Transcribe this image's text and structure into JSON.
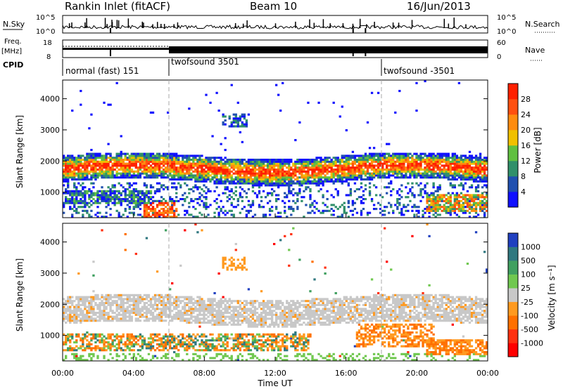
{
  "header": {
    "station": "Rankin Inlet (fitACF)",
    "beam": "Beam 10",
    "date": "16/Jun/2013"
  },
  "strips": {
    "nsky_label": "N.Sky",
    "nsky_ticks": [
      "10^5",
      "10^0"
    ],
    "nsearch_label": "N.Search",
    "nsearch_ticks": [
      "10^5",
      "10^0"
    ],
    "freq_label": "Freq.",
    "freq_unit": "[MHz]",
    "freq_ticks": [
      "18",
      "8"
    ],
    "nave_label": "Nave",
    "nave_ticks": [
      "60",
      "0"
    ],
    "cpid_label": "CPID",
    "cpid_modes": [
      {
        "name": "normal (fast) 151",
        "start_hour": 0
      },
      {
        "name": "twofsound 3501",
        "start_hour": 6
      },
      {
        "name": "twofsound -3501",
        "start_hour": 18
      }
    ]
  },
  "axes": {
    "xlabel": "Time UT",
    "x_ticks": [
      "00:00",
      "04:00",
      "08:00",
      "12:00",
      "16:00",
      "20:00",
      "00:00"
    ],
    "ylabel": "Slant Range [km]",
    "y_ticks": [
      "1000",
      "2000",
      "3000",
      "4000"
    ]
  },
  "power_scale": {
    "label": "Power [dB]",
    "ticks": [
      "4",
      "8",
      "12",
      "16",
      "20",
      "24",
      "28"
    ],
    "colors": [
      "#1010ff",
      "#2050b0",
      "#30906a",
      "#60c040",
      "#f0c000",
      "#ff8c10",
      "#ff5010",
      "#ff2000"
    ]
  },
  "velocity_scale": {
    "label": "Velocity [m s⁻¹]",
    "ticks": [
      "1000",
      "500",
      "100",
      "25",
      "-25",
      "-100",
      "-500",
      "-1000"
    ],
    "colors": [
      "#2040c0",
      "#307880",
      "#40a060",
      "#70c850",
      "#c8c8c8",
      "#ff9a20",
      "#ff7000",
      "#ff3010",
      "#ff0000"
    ]
  },
  "chart_data": [
    {
      "type": "heatmap",
      "title": "Rankin Inlet (fitACF) Beam 10 16/Jun/2013",
      "quantity": "Power",
      "xlabel": "Time UT",
      "ylabel": "Slant Range [km]",
      "xlim": [
        0,
        24
      ],
      "ylim": [
        180,
        4600
      ],
      "colorbar": {
        "label": "Power [dB]",
        "range": [
          0,
          32
        ]
      },
      "bands": [
        {
          "t_start": 0,
          "t_end": 24,
          "range_start": 1400,
          "range_end": 2300,
          "value": "20-28 dB"
        },
        {
          "t_start": 0,
          "t_end": 4.5,
          "range_start": 700,
          "range_end": 1000,
          "value": "8-16 dB"
        },
        {
          "t_start": 4.5,
          "t_end": 6.5,
          "range_start": 180,
          "range_end": 700,
          "value": "24-28 dB"
        },
        {
          "t_start": 21,
          "t_end": 24,
          "range_start": 400,
          "range_end": 900,
          "value": "16-24 dB"
        }
      ]
    },
    {
      "type": "heatmap",
      "quantity": "Velocity",
      "xlabel": "Time UT",
      "ylabel": "Slant Range [km]",
      "xlim": [
        0,
        24
      ],
      "ylim": [
        180,
        4600
      ],
      "colorbar": {
        "label": "Velocity [m s⁻¹]",
        "range": [
          -1000,
          1000
        ]
      },
      "bands": [
        {
          "t_start": 0,
          "t_end": 24,
          "range_start": 1300,
          "range_end": 2300,
          "value": "-25 to 25 m/s"
        },
        {
          "t_start": 0,
          "t_end": 14,
          "range_start": 500,
          "range_end": 1000,
          "value": "-500 to -100 m/s"
        },
        {
          "t_start": 17,
          "t_end": 21,
          "range_start": 700,
          "range_end": 1300,
          "value": "-500 to -100 m/s"
        },
        {
          "t_start": 9,
          "t_end": 10.5,
          "range_start": 3100,
          "range_end": 3500,
          "value": "-100 m/s"
        }
      ]
    }
  ]
}
